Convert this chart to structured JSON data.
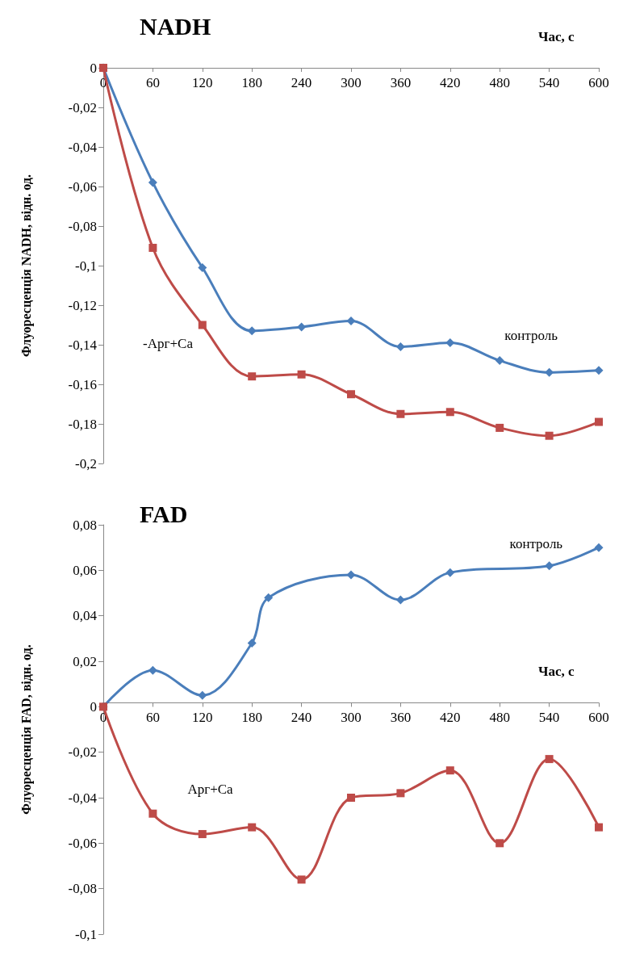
{
  "chart_data": [
    {
      "type": "line",
      "title": "NADH",
      "xlabel": "Час, с",
      "ylabel": "Флуоресценція NADH, відн. од.",
      "x": [
        0,
        60,
        120,
        180,
        240,
        300,
        360,
        420,
        480,
        540,
        600
      ],
      "xlim": [
        0,
        600
      ],
      "xticks": [
        0,
        60,
        120,
        180,
        240,
        300,
        360,
        420,
        480,
        540,
        600
      ],
      "ylim": [
        -0.2,
        0
      ],
      "yticks": [
        {
          "value": -0.2,
          "label": "-0,2"
        },
        {
          "value": -0.18,
          "label": "-0,18"
        },
        {
          "value": -0.16,
          "label": "-0,16"
        },
        {
          "value": -0.14,
          "label": "-0,14"
        },
        {
          "value": -0.12,
          "label": "-0,12"
        },
        {
          "value": -0.1,
          "label": "-0,1"
        },
        {
          "value": -0.08,
          "label": "-0,08"
        },
        {
          "value": -0.06,
          "label": "-0,06"
        },
        {
          "value": -0.04,
          "label": "-0,04"
        },
        {
          "value": -0.02,
          "label": "-0,02"
        },
        0
      ],
      "grid": false,
      "legend": false,
      "line_style": "solid",
      "series": [
        {
          "name": "контроль",
          "color": "#4a7ebb",
          "marker": "diamond",
          "values": [
            0,
            -0.058,
            -0.101,
            -0.133,
            -0.131,
            -0.128,
            -0.141,
            -0.139,
            -0.148,
            -0.154,
            -0.153
          ]
        },
        {
          "name": "-Арг+Са",
          "color": "#be4b48",
          "marker": "square",
          "values": [
            0,
            -0.091,
            -0.13,
            -0.156,
            -0.155,
            -0.165,
            -0.175,
            -0.174,
            -0.182,
            -0.186,
            -0.179
          ]
        }
      ]
    },
    {
      "type": "line",
      "title": "FAD",
      "xlabel": "Час, с",
      "ylabel": "Флуоресценція FAD, відн. од.",
      "xlim": [
        0,
        600
      ],
      "xticks": [
        0,
        60,
        120,
        180,
        240,
        300,
        360,
        420,
        480,
        540,
        600
      ],
      "ylim": [
        -0.1,
        0.08
      ],
      "yticks": [
        {
          "value": -0.1,
          "label": "-0,1"
        },
        {
          "value": -0.08,
          "label": "-0,08"
        },
        {
          "value": -0.06,
          "label": "-0,06"
        },
        {
          "value": -0.04,
          "label": "-0,04"
        },
        {
          "value": -0.02,
          "label": "-0,02"
        },
        0,
        {
          "value": 0.02,
          "label": "0,02"
        },
        {
          "value": 0.04,
          "label": "0,04"
        },
        {
          "value": 0.06,
          "label": "0,06"
        },
        {
          "value": 0.08,
          "label": "0,08"
        }
      ],
      "grid": false,
      "legend": false,
      "line_style": "solid",
      "series": [
        {
          "name": "контроль",
          "color": "#4a7ebb",
          "marker": "diamond",
          "x": [
            0,
            60,
            120,
            180,
            200,
            300,
            360,
            420,
            540,
            600
          ],
          "values": [
            0,
            0.016,
            0.005,
            0.028,
            0.048,
            0.058,
            0.047,
            0.059,
            0.062,
            0.07
          ]
        },
        {
          "name": "Арг+Са",
          "color": "#be4b48",
          "marker": "square",
          "x": [
            0,
            60,
            120,
            180,
            240,
            300,
            360,
            420,
            480,
            540,
            600
          ],
          "values": [
            0,
            -0.047,
            -0.056,
            -0.053,
            -0.076,
            -0.04,
            -0.038,
            -0.028,
            -0.06,
            -0.023,
            -0.053
          ]
        }
      ]
    }
  ]
}
